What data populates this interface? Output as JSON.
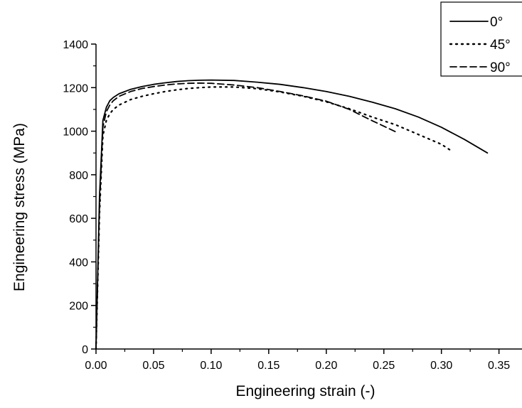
{
  "chart_data": {
    "type": "line",
    "title": "",
    "xlabel": "Engineering strain (-)",
    "ylabel": "Engineering stress (MPa)",
    "xlim": [
      0,
      0.37
    ],
    "ylim": [
      0,
      1400
    ],
    "xticks": [
      "0.00",
      "0.05",
      "0.10",
      "0.15",
      "0.20",
      "0.25",
      "0.30",
      "0.35"
    ],
    "yticks": [
      "0",
      "200",
      "400",
      "600",
      "800",
      "1000",
      "1200",
      "1400"
    ],
    "grid": false,
    "legend": "top-right",
    "series": [
      {
        "name": "0°",
        "style": "solid",
        "x": [
          0,
          0.003,
          0.006,
          0.009,
          0.012,
          0.015,
          0.02,
          0.03,
          0.04,
          0.05,
          0.06,
          0.07,
          0.08,
          0.09,
          0.1,
          0.12,
          0.14,
          0.16,
          0.18,
          0.2,
          0.22,
          0.24,
          0.26,
          0.28,
          0.3,
          0.32,
          0.34
        ],
        "y": [
          0,
          700,
          1050,
          1110,
          1140,
          1155,
          1172,
          1192,
          1205,
          1215,
          1222,
          1228,
          1232,
          1234,
          1235,
          1233,
          1225,
          1215,
          1200,
          1182,
          1160,
          1133,
          1103,
          1065,
          1018,
          962,
          900
        ]
      },
      {
        "name": "45°",
        "style": "dotted",
        "x": [
          0,
          0.003,
          0.006,
          0.009,
          0.012,
          0.015,
          0.02,
          0.03,
          0.04,
          0.05,
          0.06,
          0.07,
          0.08,
          0.09,
          0.1,
          0.12,
          0.14,
          0.16,
          0.18,
          0.2,
          0.22,
          0.24,
          0.26,
          0.28,
          0.3,
          0.308
        ],
        "y": [
          0,
          620,
          980,
          1050,
          1080,
          1100,
          1120,
          1145,
          1160,
          1172,
          1182,
          1190,
          1196,
          1200,
          1203,
          1203,
          1195,
          1180,
          1160,
          1135,
          1103,
          1065,
          1030,
          985,
          940,
          912
        ]
      },
      {
        "name": "90°",
        "style": "dashed",
        "x": [
          0,
          0.003,
          0.006,
          0.009,
          0.012,
          0.015,
          0.02,
          0.03,
          0.04,
          0.05,
          0.06,
          0.07,
          0.08,
          0.09,
          0.1,
          0.12,
          0.14,
          0.16,
          0.18,
          0.2,
          0.22,
          0.24,
          0.26
        ],
        "y": [
          0,
          650,
          1020,
          1090,
          1120,
          1140,
          1160,
          1182,
          1196,
          1205,
          1212,
          1217,
          1220,
          1221,
          1220,
          1212,
          1200,
          1182,
          1162,
          1138,
          1100,
          1048,
          998
        ]
      }
    ]
  }
}
